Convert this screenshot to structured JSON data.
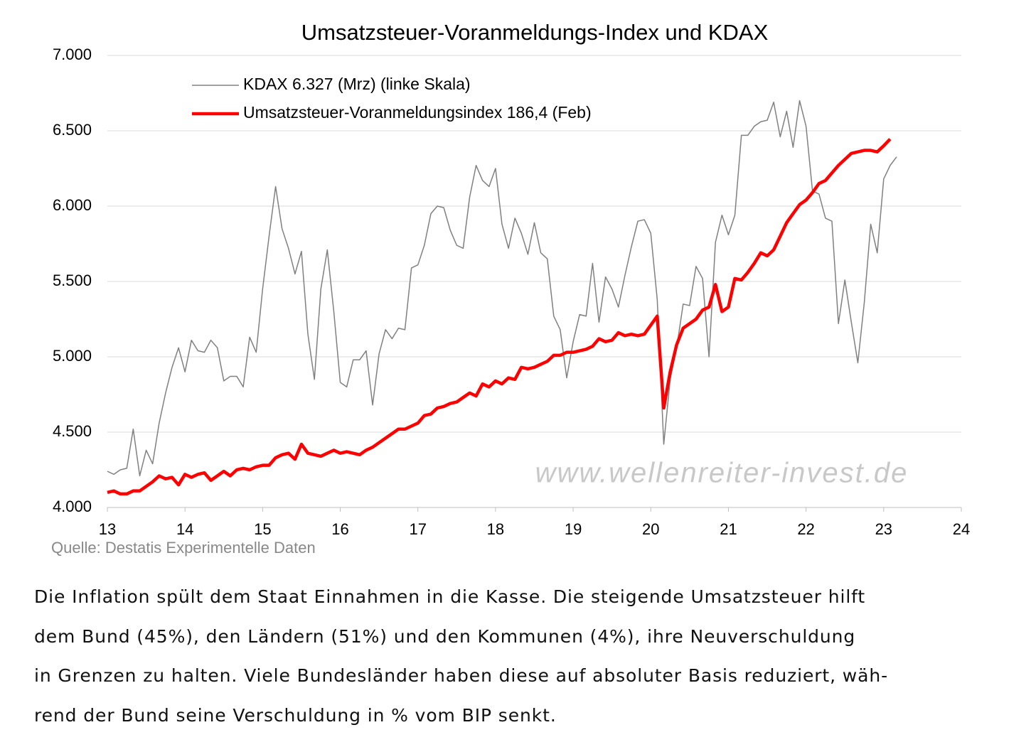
{
  "chart_data": {
    "type": "line",
    "title": "Umsatzsteuer-Voranmeldungs-Index und KDAX",
    "source": "Quelle: Destatis Experimentelle Daten",
    "watermark": "www.wellenreiter-invest.de",
    "xlim": [
      13,
      24
    ],
    "xticks": [
      13,
      14,
      15,
      16,
      17,
      18,
      19,
      20,
      21,
      22,
      23,
      24
    ],
    "ylim": [
      4000,
      7000
    ],
    "yticks": [
      {
        "value": 4000,
        "label": "4.000"
      },
      {
        "value": 4500,
        "label": "4.500"
      },
      {
        "value": 5000,
        "label": "5.000"
      },
      {
        "value": 5500,
        "label": "5.500"
      },
      {
        "value": 6000,
        "label": "6.000"
      },
      {
        "value": 6500,
        "label": "6.500"
      },
      {
        "value": 7000,
        "label": "7.000"
      }
    ],
    "grid": true,
    "legend": "upper left",
    "x": [
      13,
      13.083,
      13.167,
      13.25,
      13.333,
      13.417,
      13.5,
      13.583,
      13.667,
      13.75,
      13.833,
      13.917,
      14,
      14.083,
      14.167,
      14.25,
      14.333,
      14.417,
      14.5,
      14.583,
      14.667,
      14.75,
      14.833,
      14.917,
      15,
      15.083,
      15.167,
      15.25,
      15.333,
      15.417,
      15.5,
      15.583,
      15.667,
      15.75,
      15.833,
      15.917,
      16,
      16.083,
      16.167,
      16.25,
      16.333,
      16.417,
      16.5,
      16.583,
      16.667,
      16.75,
      16.833,
      16.917,
      17,
      17.083,
      17.167,
      17.25,
      17.333,
      17.417,
      17.5,
      17.583,
      17.667,
      17.75,
      17.833,
      17.917,
      18,
      18.083,
      18.167,
      18.25,
      18.333,
      18.417,
      18.5,
      18.583,
      18.667,
      18.75,
      18.833,
      18.917,
      19,
      19.083,
      19.167,
      19.25,
      19.333,
      19.417,
      19.5,
      19.583,
      19.667,
      19.75,
      19.833,
      19.917,
      20,
      20.083,
      20.167,
      20.25,
      20.333,
      20.417,
      20.5,
      20.583,
      20.667,
      20.75,
      20.833,
      20.917,
      21,
      21.083,
      21.167,
      21.25,
      21.333,
      21.417,
      21.5,
      21.583,
      21.667,
      21.75,
      21.833,
      21.917,
      22,
      22.083,
      22.167,
      22.25,
      22.333,
      22.417,
      22.5,
      22.583,
      22.667,
      22.75,
      22.833,
      22.917,
      23,
      23.083,
      23.167
    ],
    "series": [
      {
        "name": "KDAX 6.327 (Mrz) (linke Skala)",
        "color": "#808080",
        "width": 1.5,
        "values": [
          4240,
          4220,
          4250,
          4260,
          4520,
          4210,
          4380,
          4290,
          4560,
          4760,
          4930,
          5060,
          4900,
          5110,
          5040,
          5030,
          5110,
          5060,
          4840,
          4870,
          4870,
          4800,
          5130,
          5030,
          5450,
          5800,
          6130,
          5850,
          5720,
          5550,
          5700,
          5150,
          4850,
          5450,
          5710,
          5300,
          4830,
          4800,
          4980,
          4980,
          5040,
          4680,
          5020,
          5180,
          5120,
          5190,
          5180,
          5590,
          5610,
          5740,
          5950,
          6000,
          5990,
          5840,
          5740,
          5720,
          6060,
          6270,
          6170,
          6130,
          6250,
          5880,
          5720,
          5920,
          5820,
          5680,
          5890,
          5690,
          5650,
          5270,
          5180,
          4860,
          5100,
          5280,
          5270,
          5620,
          5230,
          5530,
          5450,
          5330,
          5540,
          5730,
          5900,
          5910,
          5820,
          5380,
          4420,
          4850,
          5060,
          5350,
          5340,
          5600,
          5520,
          5000,
          5760,
          5940,
          5810,
          5940,
          6470,
          6470,
          6530,
          6560,
          6570,
          6690,
          6460,
          6630,
          6390,
          6700,
          6530,
          6100,
          6080,
          5920,
          5900,
          5220,
          5510,
          5230,
          4960,
          5360,
          5880,
          5690,
          6180,
          6270,
          6327
        ]
      },
      {
        "name": "Umsatzsteuer-Voranmeldungsindex 186,4 (Feb)",
        "color": "#ff0000",
        "width": 4.5,
        "values": [
          4100,
          4110,
          4090,
          4090,
          4110,
          4110,
          4140,
          4170,
          4210,
          4190,
          4200,
          4150,
          4220,
          4200,
          4220,
          4230,
          4180,
          4210,
          4240,
          4210,
          4250,
          4260,
          4250,
          4270,
          4280,
          4280,
          4330,
          4350,
          4360,
          4320,
          4420,
          4360,
          4350,
          4340,
          4360,
          4380,
          4360,
          4370,
          4360,
          4350,
          4380,
          4400,
          4430,
          4460,
          4490,
          4520,
          4520,
          4540,
          4560,
          4610,
          4620,
          4660,
          4670,
          4690,
          4700,
          4730,
          4760,
          4740,
          4820,
          4800,
          4840,
          4820,
          4860,
          4850,
          4930,
          4920,
          4930,
          4950,
          4970,
          5010,
          5010,
          5030,
          5030,
          5040,
          5050,
          5070,
          5120,
          5100,
          5110,
          5160,
          5140,
          5150,
          5140,
          5150,
          5210,
          5270,
          4660,
          4900,
          5080,
          5190,
          5220,
          5250,
          5310,
          5330,
          5480,
          5300,
          5330,
          5520,
          5510,
          5560,
          5620,
          5690,
          5670,
          5710,
          5800,
          5890,
          5950,
          6010,
          6040,
          6090,
          6150,
          6170,
          6220,
          6270,
          6310,
          6350,
          6360,
          6370,
          6370,
          6360,
          6400,
          6445,
          null
        ]
      }
    ]
  },
  "text": [
    "Die Inflation spült dem Staat Einnahmen in die Kasse. Die steigende Umsatzsteuer hilft",
    "dem Bund (45%), den Ländern (51%) und den Kommunen (4%), ihre Neuverschuldung",
    "in Grenzen zu halten. Viele Bundesländer haben diese auf absoluter Basis reduziert, wäh-",
    "rend der Bund seine Verschuldung in % vom BIP senkt."
  ]
}
